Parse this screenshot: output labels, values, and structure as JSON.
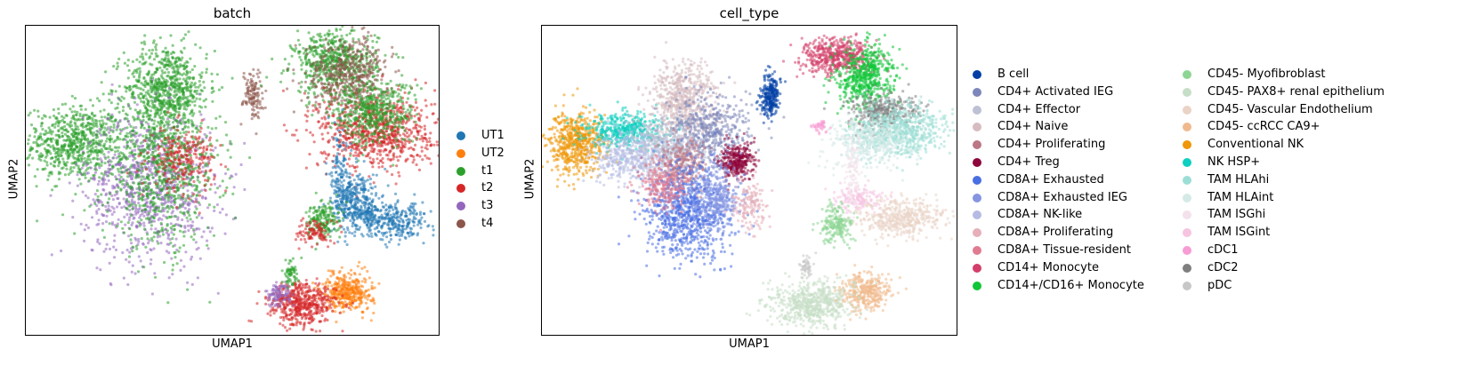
{
  "chart_data": [
    {
      "type": "scatter",
      "title": "batch",
      "xlabel": "UMAP1",
      "ylabel": "UMAP2",
      "legend_position": "right",
      "series": [
        {
          "name": "UT1",
          "color": "#1f77b4"
        },
        {
          "name": "UT2",
          "color": "#ff7f0e"
        },
        {
          "name": "t1",
          "color": "#2ca02c"
        },
        {
          "name": "t2",
          "color": "#d62728"
        },
        {
          "name": "t3",
          "color": "#9467bd"
        },
        {
          "name": "t4",
          "color": "#8c564b"
        }
      ],
      "clusters": [
        {
          "series": "t1",
          "x": 0.12,
          "y": 0.62,
          "sx": 0.06,
          "sy": 0.06,
          "n": 700
        },
        {
          "series": "t1",
          "x": 0.34,
          "y": 0.8,
          "sx": 0.05,
          "sy": 0.07,
          "n": 650
        },
        {
          "series": "t3",
          "x": 0.3,
          "y": 0.48,
          "sx": 0.08,
          "sy": 0.12,
          "n": 900
        },
        {
          "series": "t1",
          "x": 0.33,
          "y": 0.55,
          "sx": 0.07,
          "sy": 0.13,
          "n": 900
        },
        {
          "series": "t2",
          "x": 0.38,
          "y": 0.57,
          "sx": 0.04,
          "sy": 0.05,
          "n": 250
        },
        {
          "series": "t4",
          "x": 0.55,
          "y": 0.78,
          "sx": 0.012,
          "sy": 0.04,
          "n": 120
        },
        {
          "series": "t1",
          "x": 0.75,
          "y": 0.88,
          "sx": 0.05,
          "sy": 0.05,
          "n": 600
        },
        {
          "series": "t4",
          "x": 0.78,
          "y": 0.84,
          "sx": 0.05,
          "sy": 0.06,
          "n": 500
        },
        {
          "series": "t2",
          "x": 0.85,
          "y": 0.66,
          "sx": 0.07,
          "sy": 0.06,
          "n": 800
        },
        {
          "series": "t1",
          "x": 0.84,
          "y": 0.72,
          "sx": 0.05,
          "sy": 0.05,
          "n": 500
        },
        {
          "series": "UT1",
          "x": 0.8,
          "y": 0.43,
          "sx": 0.03,
          "sy": 0.05,
          "n": 350
        },
        {
          "series": "UT1",
          "x": 0.88,
          "y": 0.37,
          "sx": 0.05,
          "sy": 0.03,
          "n": 350
        },
        {
          "series": "t1",
          "x": 0.72,
          "y": 0.37,
          "sx": 0.02,
          "sy": 0.03,
          "n": 180
        },
        {
          "series": "t2",
          "x": 0.7,
          "y": 0.33,
          "sx": 0.02,
          "sy": 0.02,
          "n": 100
        },
        {
          "series": "UT1",
          "x": 0.76,
          "y": 0.55,
          "sx": 0.01,
          "sy": 0.08,
          "n": 100
        },
        {
          "series": "UT2",
          "x": 0.78,
          "y": 0.14,
          "sx": 0.03,
          "sy": 0.03,
          "n": 400
        },
        {
          "series": "t2",
          "x": 0.67,
          "y": 0.1,
          "sx": 0.04,
          "sy": 0.035,
          "n": 500
        },
        {
          "series": "t3",
          "x": 0.61,
          "y": 0.13,
          "sx": 0.015,
          "sy": 0.02,
          "n": 100
        },
        {
          "series": "t1",
          "x": 0.64,
          "y": 0.2,
          "sx": 0.01,
          "sy": 0.02,
          "n": 60
        }
      ]
    },
    {
      "type": "scatter",
      "title": "cell_type",
      "xlabel": "UMAP1",
      "ylabel": "UMAP2",
      "legend_position": "right",
      "series": [
        {
          "name": "B cell",
          "color": "#023fa5"
        },
        {
          "name": "CD4+ Activated IEG",
          "color": "#7d87b9"
        },
        {
          "name": "CD4+ Effector",
          "color": "#bec1d4"
        },
        {
          "name": "CD4+ Naive",
          "color": "#d6bcc0"
        },
        {
          "name": "CD4+ Proliferating",
          "color": "#bb7784"
        },
        {
          "name": "CD4+ Treg",
          "color": "#8e063b"
        },
        {
          "name": "CD8A+ Exhausted",
          "color": "#4a6fe3"
        },
        {
          "name": "CD8A+ Exhausted IEG",
          "color": "#8595e1"
        },
        {
          "name": "CD8A+ NK-like",
          "color": "#b5bbe3"
        },
        {
          "name": "CD8A+ Proliferating",
          "color": "#e6afb9"
        },
        {
          "name": "CD8A+ Tissue-resident",
          "color": "#e07b91"
        },
        {
          "name": "CD14+ Monocyte",
          "color": "#d33f6a"
        },
        {
          "name": "CD14+/CD16+ Monocyte",
          "color": "#11c638"
        },
        {
          "name": "CD45- Myofibroblast",
          "color": "#8dd593"
        },
        {
          "name": "CD45- PAX8+ renal epithelium",
          "color": "#c6dec7"
        },
        {
          "name": "CD45- Vascular Endothelium",
          "color": "#ead3c6"
        },
        {
          "name": "CD45- ccRCC CA9+",
          "color": "#f0b98d"
        },
        {
          "name": "Conventional NK",
          "color": "#ef9708"
        },
        {
          "name": "NK HSP+",
          "color": "#0fcfc0"
        },
        {
          "name": "TAM HLAhi",
          "color": "#9cded6"
        },
        {
          "name": "TAM HLAint",
          "color": "#d5eae7"
        },
        {
          "name": "TAM ISGhi",
          "color": "#f3e1eb"
        },
        {
          "name": "TAM ISGint",
          "color": "#f6c4e1"
        },
        {
          "name": "cDC1",
          "color": "#f79cd4"
        },
        {
          "name": "cDC2",
          "color": "#7f7f7f"
        },
        {
          "name": "pDC",
          "color": "#c7c7c7"
        }
      ],
      "clusters": [
        {
          "series": "Conventional NK",
          "x": 0.08,
          "y": 0.62,
          "sx": 0.035,
          "sy": 0.05,
          "n": 600
        },
        {
          "series": "NK HSP+",
          "x": 0.2,
          "y": 0.66,
          "sx": 0.05,
          "sy": 0.03,
          "n": 450
        },
        {
          "series": "CD8A+ NK-like",
          "x": 0.22,
          "y": 0.58,
          "sx": 0.05,
          "sy": 0.04,
          "n": 450
        },
        {
          "series": "CD4+ Naive",
          "x": 0.34,
          "y": 0.76,
          "sx": 0.04,
          "sy": 0.06,
          "n": 600
        },
        {
          "series": "CD4+ Activated IEG",
          "x": 0.4,
          "y": 0.66,
          "sx": 0.05,
          "sy": 0.06,
          "n": 500
        },
        {
          "series": "CD4+ Effector",
          "x": 0.3,
          "y": 0.6,
          "sx": 0.04,
          "sy": 0.05,
          "n": 350
        },
        {
          "series": "CD4+ Proliferating",
          "x": 0.34,
          "y": 0.55,
          "sx": 0.03,
          "sy": 0.04,
          "n": 250
        },
        {
          "series": "CD4+ Treg",
          "x": 0.47,
          "y": 0.56,
          "sx": 0.02,
          "sy": 0.03,
          "n": 300
        },
        {
          "series": "CD8A+ Exhausted",
          "x": 0.35,
          "y": 0.4,
          "sx": 0.05,
          "sy": 0.08,
          "n": 900
        },
        {
          "series": "CD8A+ Exhausted IEG",
          "x": 0.42,
          "y": 0.45,
          "sx": 0.03,
          "sy": 0.05,
          "n": 300
        },
        {
          "series": "CD8A+ Tissue-resident",
          "x": 0.29,
          "y": 0.48,
          "sx": 0.03,
          "sy": 0.04,
          "n": 250
        },
        {
          "series": "CD8A+ Proliferating",
          "x": 0.5,
          "y": 0.42,
          "sx": 0.02,
          "sy": 0.04,
          "n": 150
        },
        {
          "series": "B cell",
          "x": 0.55,
          "y": 0.77,
          "sx": 0.012,
          "sy": 0.035,
          "n": 250
        },
        {
          "series": "CD14+ Monocyte",
          "x": 0.71,
          "y": 0.9,
          "sx": 0.04,
          "sy": 0.03,
          "n": 500
        },
        {
          "series": "CD14+/CD16+ Monocyte",
          "x": 0.78,
          "y": 0.84,
          "sx": 0.035,
          "sy": 0.05,
          "n": 550
        },
        {
          "series": "cDC2",
          "x": 0.82,
          "y": 0.72,
          "sx": 0.04,
          "sy": 0.03,
          "n": 350
        },
        {
          "series": "TAM HLAhi",
          "x": 0.86,
          "y": 0.66,
          "sx": 0.06,
          "sy": 0.04,
          "n": 700
        },
        {
          "series": "TAM HLAint",
          "x": 0.79,
          "y": 0.62,
          "sx": 0.05,
          "sy": 0.04,
          "n": 350
        },
        {
          "series": "cDC1",
          "x": 0.67,
          "y": 0.68,
          "sx": 0.01,
          "sy": 0.01,
          "n": 40
        },
        {
          "series": "TAM ISGint",
          "x": 0.76,
          "y": 0.44,
          "sx": 0.03,
          "sy": 0.02,
          "n": 150
        },
        {
          "series": "CD45- Vascular Endothelium",
          "x": 0.87,
          "y": 0.38,
          "sx": 0.05,
          "sy": 0.03,
          "n": 450
        },
        {
          "series": "CD45- Myofibroblast",
          "x": 0.71,
          "y": 0.36,
          "sx": 0.02,
          "sy": 0.03,
          "n": 200
        },
        {
          "series": "CD45- ccRCC CA9+",
          "x": 0.78,
          "y": 0.14,
          "sx": 0.03,
          "sy": 0.03,
          "n": 350
        },
        {
          "series": "CD45- PAX8+ renal epithelium",
          "x": 0.65,
          "y": 0.1,
          "sx": 0.05,
          "sy": 0.04,
          "n": 600
        },
        {
          "series": "TAM ISGhi",
          "x": 0.75,
          "y": 0.52,
          "sx": 0.01,
          "sy": 0.06,
          "n": 100
        },
        {
          "series": "pDC",
          "x": 0.64,
          "y": 0.22,
          "sx": 0.01,
          "sy": 0.02,
          "n": 50
        }
      ]
    }
  ]
}
